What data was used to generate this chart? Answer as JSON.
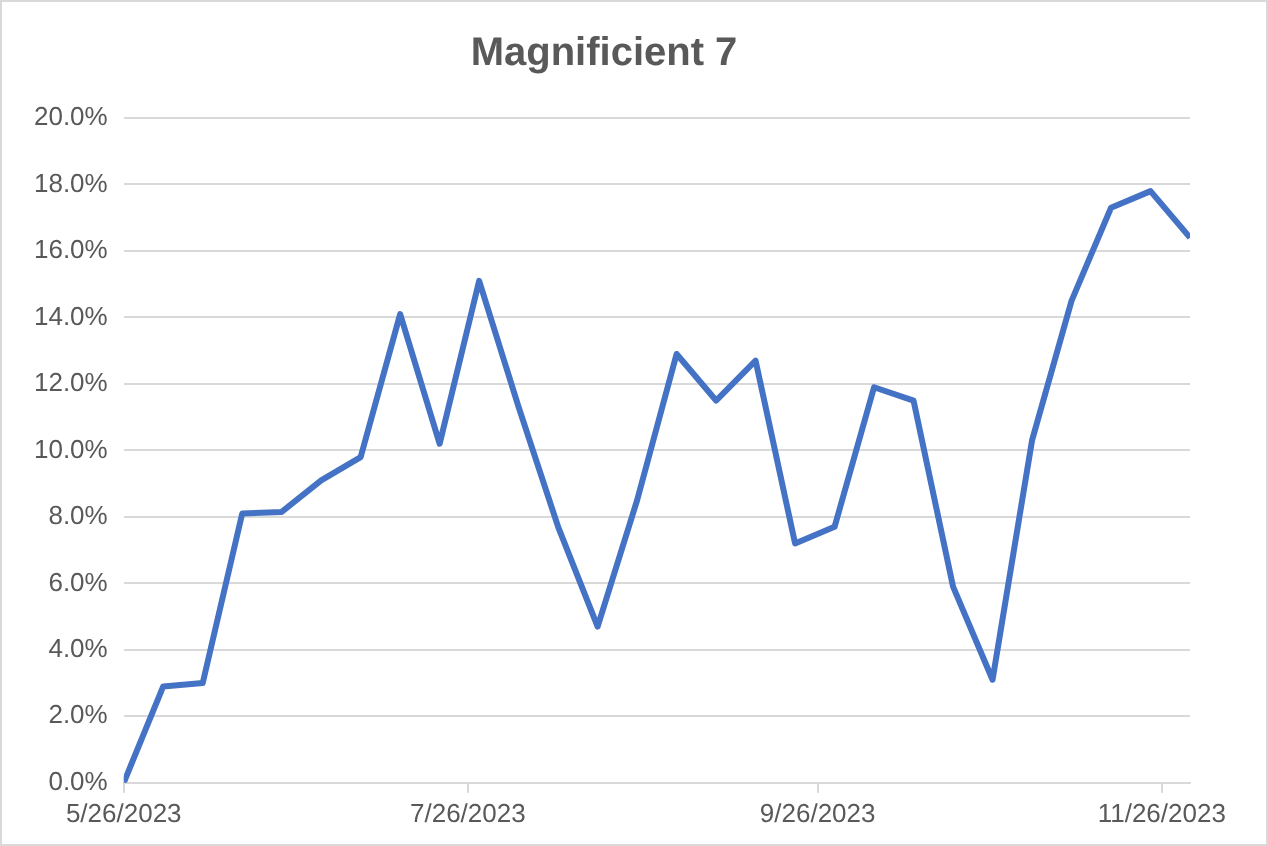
{
  "chart_data": {
    "type": "line",
    "title": "Magnificient 7",
    "x": [
      "2023-05-26",
      "2023-06-02",
      "2023-06-09",
      "2023-06-16",
      "2023-06-23",
      "2023-06-30",
      "2023-07-07",
      "2023-07-14",
      "2023-07-21",
      "2023-07-28",
      "2023-08-04",
      "2023-08-11",
      "2023-08-18",
      "2023-08-25",
      "2023-09-01",
      "2023-09-08",
      "2023-09-15",
      "2023-09-22",
      "2023-09-29",
      "2023-10-06",
      "2023-10-13",
      "2023-10-20",
      "2023-10-27",
      "2023-11-03",
      "2023-11-10",
      "2023-11-17",
      "2023-11-24",
      "2023-12-01"
    ],
    "series": [
      {
        "color": "#4472c4",
        "values": [
          0,
          2.9,
          3.0,
          8.1,
          8.15,
          9.1,
          9.8,
          14.1,
          10.2,
          15.1,
          11.3,
          7.7,
          4.7,
          8.5,
          12.9,
          11.5,
          12.7,
          7.2,
          7.7,
          11.9,
          11.5,
          5.9,
          3.1,
          10.3,
          14.5,
          17.3,
          17.8,
          16.4
        ]
      }
    ],
    "xlim": [
      "2023-05-26",
      "2023-12-01"
    ],
    "xticks": [
      {
        "value": "2023-05-26",
        "label": "5/26/2023"
      },
      {
        "value": "2023-07-26",
        "label": "7/26/2023"
      },
      {
        "value": "2023-09-26",
        "label": "9/26/2023"
      },
      {
        "value": "2023-11-26",
        "label": "11/26/2023"
      }
    ],
    "ylim": [
      0,
      20
    ],
    "yticks": [
      {
        "value": 0,
        "label": "0.0%"
      },
      {
        "value": 2,
        "label": "2.0%"
      },
      {
        "value": 4,
        "label": "4.0%"
      },
      {
        "value": 6,
        "label": "6.0%"
      },
      {
        "value": 8,
        "label": "8.0%"
      },
      {
        "value": 10,
        "label": "10.0%"
      },
      {
        "value": 12,
        "label": "12.0%"
      },
      {
        "value": 14,
        "label": "14.0%"
      },
      {
        "value": 16,
        "label": "16.0%"
      },
      {
        "value": 18,
        "label": "18.0%"
      },
      {
        "value": 20,
        "label": "20.0%"
      }
    ],
    "grid": "y",
    "legend": false,
    "marker": "none",
    "line_style": "solid"
  }
}
